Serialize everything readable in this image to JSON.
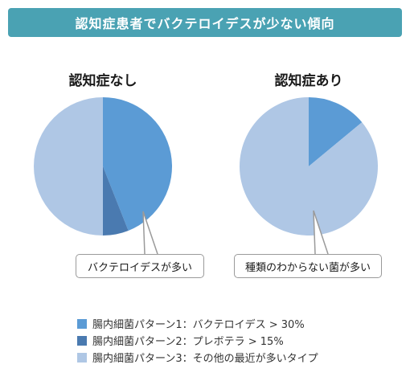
{
  "banner": {
    "title": "認知症患者でバクテロイデスが少ない傾向"
  },
  "colors": {
    "banner": "#4aa2b3",
    "pattern1": "#5b9bd5",
    "pattern2": "#4a7ab0",
    "pattern3": "#afc7e5"
  },
  "legend": [
    {
      "label": "腸内細菌パターン1：バクテロイデス > 30%",
      "color": "#5b9bd5"
    },
    {
      "label": "腸内細菌パターン2：プレボテラ > 15%",
      "color": "#4a7ab0"
    },
    {
      "label": "腸内細菌パターン3：その他の最近が多いタイプ",
      "color": "#afc7e5"
    }
  ],
  "chart_data": [
    {
      "type": "pie",
      "title": "認知症なし",
      "categories": [
        "腸内細菌パターン1：バクテロイデス > 30%",
        "腸内細菌パターン2：プレボテラ > 15%",
        "腸内細菌パターン3：その他の最近が多いタイプ"
      ],
      "values": [
        44,
        6,
        50
      ],
      "annotation": "バクテロイデスが多い"
    },
    {
      "type": "pie",
      "title": "認知症あり",
      "categories": [
        "腸内細菌パターン1：バクテロイデス > 30%",
        "腸内細菌パターン3：その他の最近が多いタイプ"
      ],
      "values": [
        14,
        86
      ],
      "annotation": "種類のわからない菌が多い"
    }
  ]
}
